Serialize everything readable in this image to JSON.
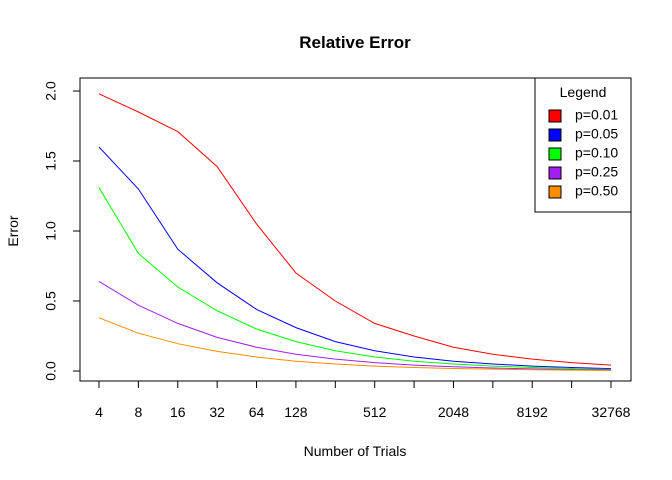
{
  "chart_data": {
    "type": "line",
    "title": "Relative Error",
    "xlabel": "Number of Trials",
    "ylabel": "Error",
    "x_scale": "log2",
    "x": [
      4,
      8,
      16,
      32,
      64,
      128,
      256,
      512,
      1024,
      2048,
      4096,
      8192,
      16384,
      32768
    ],
    "x_tick_labels": [
      "4",
      "8",
      "16",
      "32",
      "64",
      "128",
      "512",
      "2048",
      "8192",
      "32768"
    ],
    "y_ticks": [
      "0.0",
      "0.5",
      "1.0",
      "1.5",
      "2.0"
    ],
    "ylim": [
      0,
      2.0
    ],
    "grid": false,
    "legend_title": "Legend",
    "legend_position": "top-right",
    "series": [
      {
        "name": "p=0.01",
        "color": "#ff0000",
        "values": [
          1.98,
          1.85,
          1.71,
          1.46,
          1.05,
          0.7,
          0.5,
          0.34,
          0.25,
          0.17,
          0.12,
          0.085,
          0.06,
          0.042
        ]
      },
      {
        "name": "p=0.05",
        "color": "#0000ff",
        "values": [
          1.6,
          1.3,
          0.87,
          0.63,
          0.44,
          0.31,
          0.21,
          0.145,
          0.1,
          0.07,
          0.05,
          0.035,
          0.025,
          0.017
        ]
      },
      {
        "name": "p=0.10",
        "color": "#00ff00",
        "values": [
          1.31,
          0.84,
          0.6,
          0.43,
          0.3,
          0.21,
          0.145,
          0.1,
          0.07,
          0.05,
          0.035,
          0.025,
          0.018,
          0.012
        ]
      },
      {
        "name": "p=0.25",
        "color": "#a020f0",
        "values": [
          0.64,
          0.47,
          0.34,
          0.24,
          0.17,
          0.12,
          0.085,
          0.06,
          0.042,
          0.03,
          0.021,
          0.015,
          0.011,
          0.008
        ]
      },
      {
        "name": "p=0.50",
        "color": "#ff8c00",
        "values": [
          0.38,
          0.27,
          0.195,
          0.14,
          0.1,
          0.07,
          0.05,
          0.035,
          0.025,
          0.018,
          0.013,
          0.009,
          0.006,
          0.004
        ]
      }
    ]
  }
}
